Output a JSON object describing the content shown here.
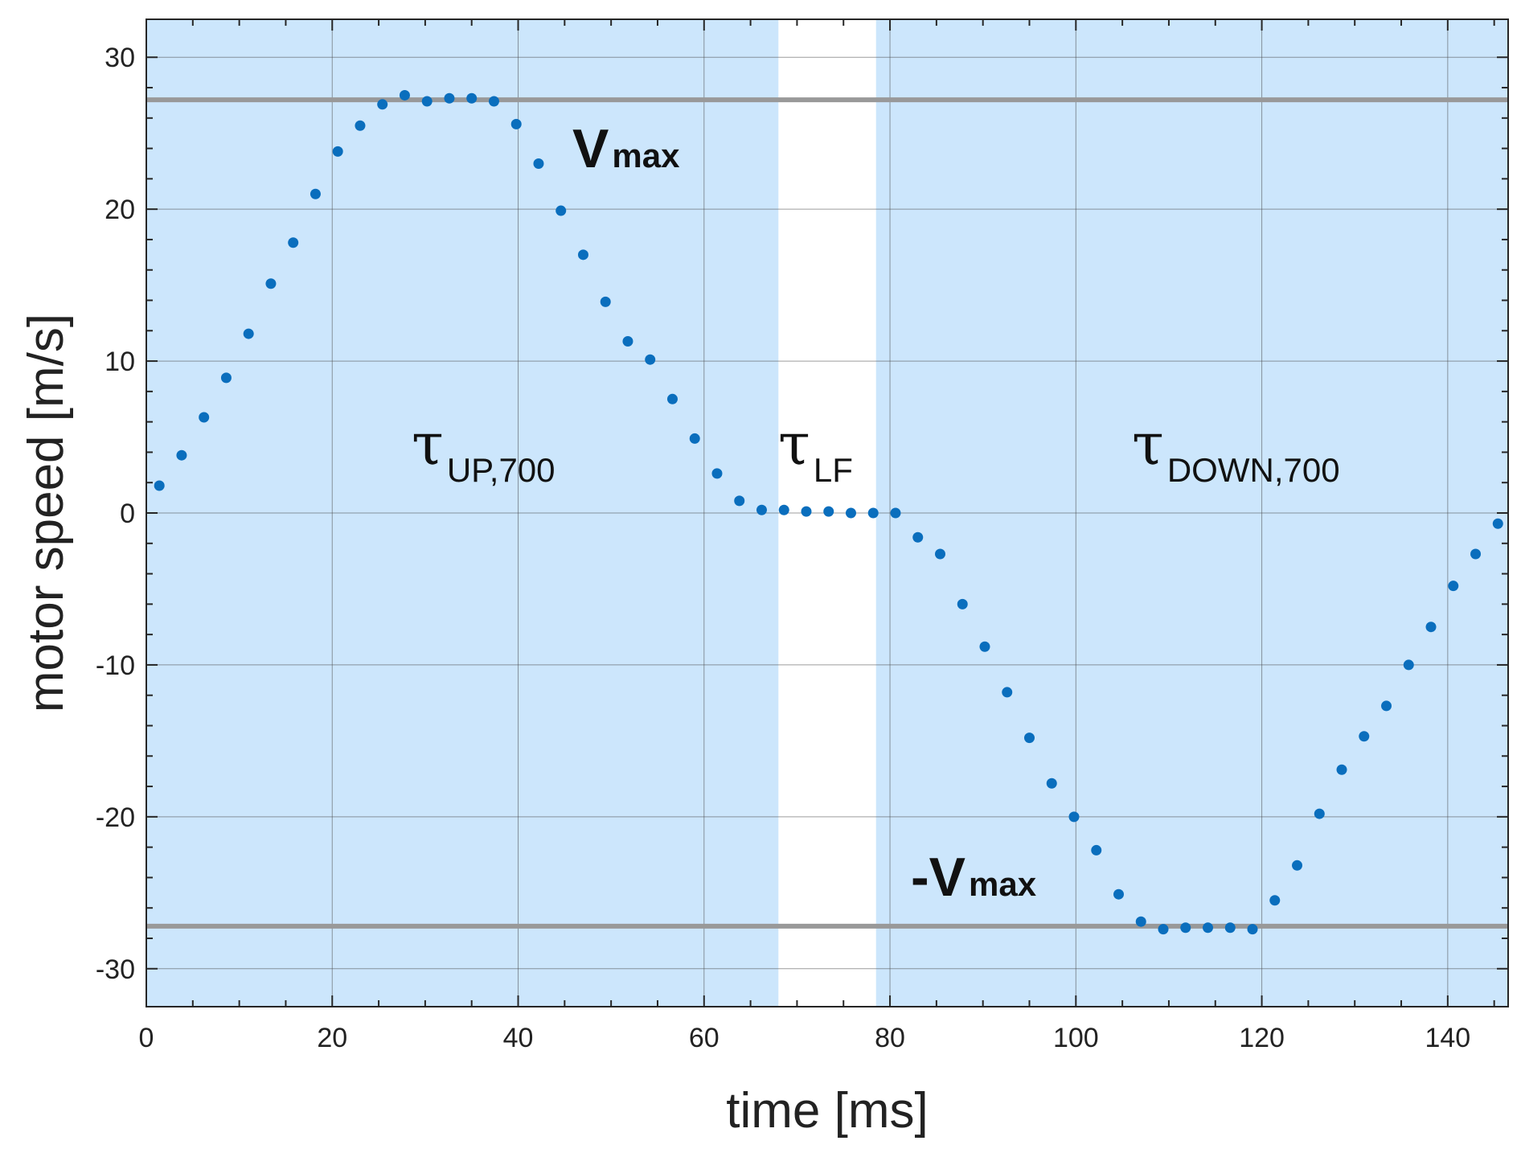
{
  "chart_data": {
    "type": "scatter",
    "xlabel": "time [ms]",
    "ylabel": "motor speed [m/s]",
    "xlim": [
      0,
      146.5
    ],
    "ylim": [
      -32.5,
      32.5
    ],
    "x_ticks": [
      0,
      20,
      40,
      60,
      80,
      100,
      120,
      140
    ],
    "x_tick_labels": [
      "0",
      "20",
      "40",
      "60",
      "80",
      "100",
      "120",
      "140"
    ],
    "y_ticks": [
      30,
      20,
      10,
      0,
      -10,
      -20,
      -30
    ],
    "y_tick_labels": [
      "30",
      "20",
      "10",
      "0",
      "-10",
      "-20",
      "-30"
    ],
    "grid": true,
    "background_color": "#cce6fc",
    "point_color": "#0a6ebd",
    "reference_line_color": "#999999",
    "phases": [
      {
        "label": "τ",
        "sub": "UP,700",
        "x_start": 0,
        "x_end": 68,
        "shaded": true
      },
      {
        "label": "τ",
        "sub": "LF",
        "x_start": 68,
        "x_end": 78.5,
        "shaded": false
      },
      {
        "label": "τ",
        "sub": "DOWN,700",
        "x_start": 78.5,
        "x_end": 146.5,
        "shaded": true
      }
    ],
    "reference_lines": [
      {
        "y": 27.2,
        "label": "V",
        "sub": "max"
      },
      {
        "y": -27.2,
        "label": "-V",
        "sub": "max"
      }
    ],
    "x": [
      1.4,
      3.8,
      6.2,
      8.6,
      11.0,
      13.4,
      15.8,
      18.2,
      20.6,
      23.0,
      25.4,
      27.8,
      30.2,
      32.6,
      35.0,
      37.4,
      39.8,
      42.2,
      44.6,
      47.0,
      49.4,
      51.8,
      54.2,
      56.6,
      59.0,
      61.4,
      63.8,
      66.2,
      68.6,
      71.0,
      73.4,
      75.8,
      78.2,
      80.6,
      83.0,
      85.4,
      87.8,
      90.2,
      92.6,
      95.0,
      97.4,
      99.8,
      102.2,
      104.6,
      107.0,
      109.4,
      111.8,
      114.2,
      116.6,
      119.0,
      121.4,
      123.8,
      126.2,
      128.6,
      131.0,
      133.4,
      135.8,
      138.2,
      140.6,
      143.0,
      145.4
    ],
    "y": [
      1.8,
      3.8,
      6.3,
      8.9,
      11.8,
      15.1,
      17.8,
      21.0,
      23.8,
      25.5,
      26.9,
      27.5,
      27.1,
      27.3,
      27.3,
      27.1,
      25.6,
      23.0,
      19.9,
      17.0,
      13.9,
      11.3,
      10.1,
      7.5,
      4.9,
      2.6,
      0.8,
      0.2,
      0.2,
      0.1,
      0.1,
      0.0,
      0.0,
      0.0,
      -1.6,
      -2.7,
      -6.0,
      -8.8,
      -11.8,
      -14.8,
      -17.8,
      -20.0,
      -22.2,
      -25.1,
      -26.9,
      -27.4,
      -27.3,
      -27.3,
      -27.3,
      -27.4,
      -25.5,
      -23.2,
      -19.8,
      -16.9,
      -14.7,
      -12.7,
      -10.0,
      -7.5,
      -4.8,
      -2.7,
      -0.7
    ]
  }
}
